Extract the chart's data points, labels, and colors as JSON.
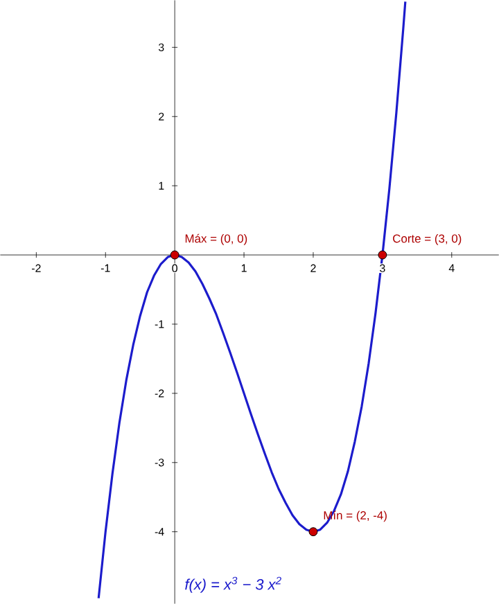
{
  "chart_data": {
    "type": "line",
    "xlim": [
      -2.52,
      4.68
    ],
    "ylim": [
      -5.04,
      3.68
    ],
    "xticks": [
      -2,
      -1,
      0,
      1,
      2,
      3,
      4
    ],
    "yticks": [
      -4,
      -3,
      -2,
      -1,
      1,
      2,
      3
    ],
    "grid": false,
    "series": [
      {
        "type": "line",
        "color": "#1c1ccc",
        "marker": "none",
        "x": [
          -1.1,
          -1.0,
          -0.9,
          -0.8,
          -0.7,
          -0.6,
          -0.5,
          -0.4,
          -0.3,
          -0.2,
          -0.1,
          0,
          0.1,
          0.2,
          0.3,
          0.4,
          0.5,
          0.6,
          0.7,
          0.8,
          0.9,
          1.0,
          1.1,
          1.2,
          1.3,
          1.4,
          1.5,
          1.6,
          1.7,
          1.8,
          1.9,
          2.0,
          2.1,
          2.2,
          2.3,
          2.4,
          2.5,
          2.6,
          2.7,
          2.8,
          2.9,
          3.0,
          3.1,
          3.2,
          3.3,
          3.33
        ],
        "values": [
          -4.96,
          -4,
          -3.16,
          -2.43,
          -1.81,
          -1.3,
          -0.88,
          -0.54,
          -0.3,
          -0.13,
          -0.03,
          0,
          -0.03,
          -0.11,
          -0.24,
          -0.42,
          -0.63,
          -0.86,
          -1.13,
          -1.41,
          -1.7,
          -2,
          -2.3,
          -2.59,
          -2.87,
          -3.14,
          -3.38,
          -3.58,
          -3.76,
          -3.89,
          -3.97,
          -4,
          -3.97,
          -3.87,
          -3.7,
          -3.46,
          -3.13,
          -2.7,
          -2.19,
          -1.57,
          -0.84,
          0,
          0.96,
          2.05,
          3.27,
          3.66
        ]
      },
      {
        "type": "scatter",
        "color": "#cc0000",
        "marker": "circle",
        "x": [
          0,
          3,
          2
        ],
        "values": [
          0,
          0,
          -4
        ]
      }
    ],
    "annotations": [
      {
        "text": "Máx = (0, 0)",
        "x": 0,
        "y": 0
      },
      {
        "text": "Corte = (3, 0)",
        "x": 3,
        "y": 0
      },
      {
        "text": "Mín = (2, -4)",
        "x": 2,
        "y": -4
      },
      "f(x) = x$^{3}$ − 3 x$^{2}$"
    ]
  }
}
